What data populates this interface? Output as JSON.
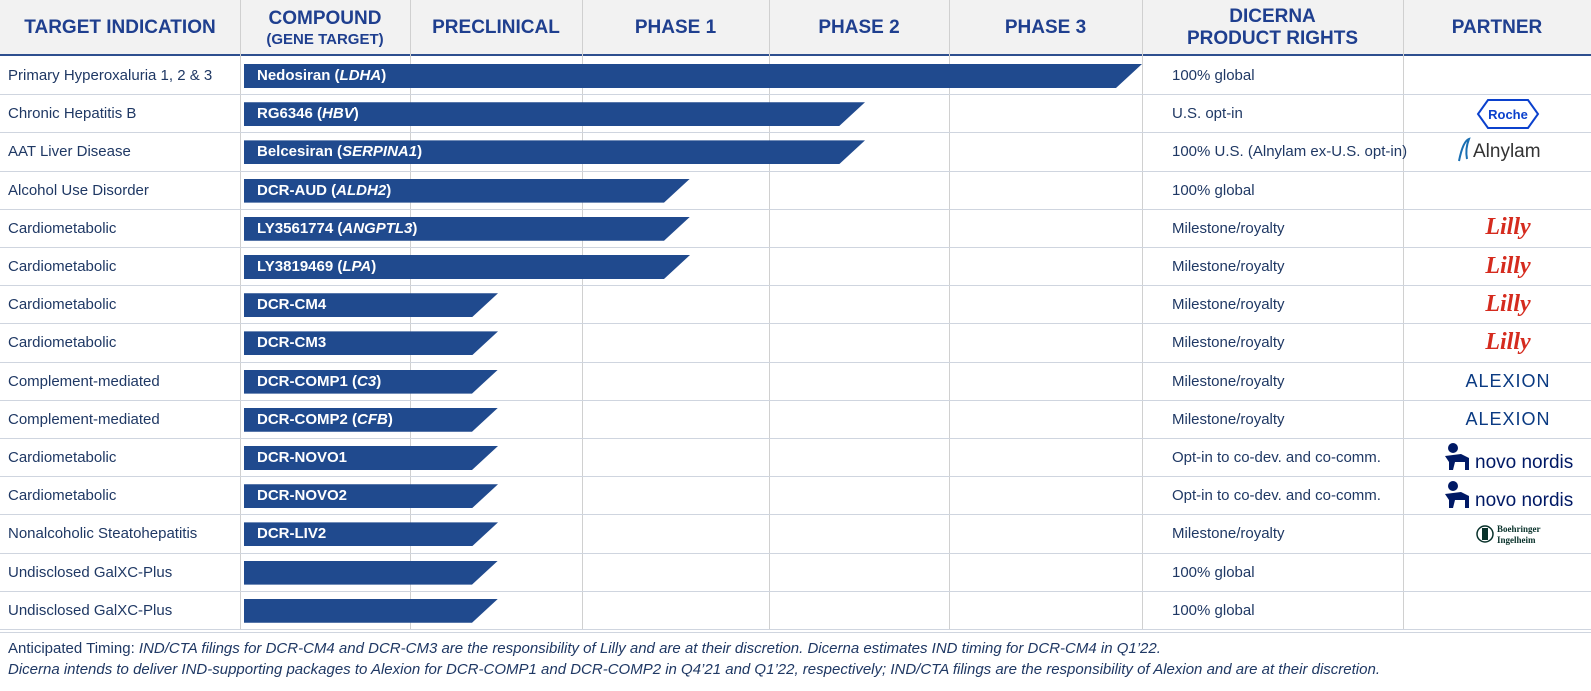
{
  "header": {
    "target_indication": "TARGET INDICATION",
    "compound": "COMPOUND",
    "compound_sub": "(GENE TARGET)",
    "preclinical": "PRECLINICAL",
    "phase1": "PHASE 1",
    "phase2": "PHASE 2",
    "phase3": "PHASE 3",
    "rights_line1": "DICERNA",
    "rights_line2": "PRODUCT RIGHTS",
    "partner": "PARTNER"
  },
  "rows": [
    {
      "indication": "Primary Hyperoxaluria 1, 2 & 3",
      "compound": "Nedosiran",
      "gene": "LDHA",
      "stage": "Phase 3",
      "rights": "100% global",
      "partner": ""
    },
    {
      "indication": "Chronic Hepatitis B",
      "compound": "RG6346",
      "gene": "HBV",
      "stage": "Phase 2",
      "rights": "U.S. opt-in",
      "partner": "Roche"
    },
    {
      "indication": "AAT Liver Disease",
      "compound": "Belcesiran",
      "gene": "SERPINA1",
      "stage": "Phase 2",
      "rights": "100% U.S. (Alnylam ex-U.S. opt-in)",
      "partner": "Alnylam"
    },
    {
      "indication": "Alcohol Use Disorder",
      "compound": "DCR-AUD",
      "gene": "ALDH2",
      "stage": "Phase 1",
      "rights": "100% global",
      "partner": ""
    },
    {
      "indication": "Cardiometabolic",
      "compound": "LY3561774",
      "gene": "ANGPTL3",
      "stage": "Phase 1",
      "rights": "Milestone/royalty",
      "partner": "Lilly"
    },
    {
      "indication": "Cardiometabolic",
      "compound": "LY3819469",
      "gene": "LPA",
      "stage": "Phase 1",
      "rights": "Milestone/royalty",
      "partner": "Lilly"
    },
    {
      "indication": "Cardiometabolic",
      "compound": "DCR-CM4",
      "gene": "",
      "stage": "Preclinical",
      "rights": "Milestone/royalty",
      "partner": "Lilly"
    },
    {
      "indication": "Cardiometabolic",
      "compound": "DCR-CM3",
      "gene": "",
      "stage": "Preclinical",
      "rights": "Milestone/royalty",
      "partner": "Lilly"
    },
    {
      "indication": "Complement-mediated",
      "compound": "DCR-COMP1",
      "gene": "C3",
      "stage": "Preclinical",
      "rights": "Milestone/royalty",
      "partner": "ALEXION"
    },
    {
      "indication": "Complement-mediated",
      "compound": "DCR-COMP2",
      "gene": "CFB",
      "stage": "Preclinical",
      "rights": "Milestone/royalty",
      "partner": "ALEXION"
    },
    {
      "indication": "Cardiometabolic",
      "compound": "DCR-NOVO1",
      "gene": "",
      "stage": "Preclinical",
      "rights": "Opt-in to co-dev. and co-comm.",
      "partner": "novo nordisk"
    },
    {
      "indication": "Cardiometabolic",
      "compound": "DCR-NOVO2",
      "gene": "",
      "stage": "Preclinical",
      "rights": "Opt-in to co-dev. and co-comm.",
      "partner": "novo nordisk"
    },
    {
      "indication": "Nonalcoholic Steatohepatitis",
      "compound": "DCR-LIV2",
      "gene": "",
      "stage": "Preclinical",
      "rights": "Milestone/royalty",
      "partner": "Boehringer Ingelheim"
    },
    {
      "indication": "Undisclosed GalXC-Plus",
      "compound": "",
      "gene": "",
      "stage": "Preclinical",
      "rights": "100% global",
      "partner": ""
    },
    {
      "indication": "Undisclosed GalXC-Plus",
      "compound": "",
      "gene": "",
      "stage": "Preclinical",
      "rights": "100% global",
      "partner": ""
    }
  ],
  "footnote": {
    "line1_lead": "Anticipated Timing: ",
    "line1_rest": "IND/CTA filings for DCR-CM4 and DCR-CM3 are the responsibility of Lilly and are at their discretion. Dicerna estimates IND timing for DCR-CM4 in Q1’22.",
    "line2": "Dicerna intends to deliver IND-supporting packages to Alexion for DCR-COMP1 and DCR-COMP2 in Q4’21 and Q1’22, respectively; IND/CTA filings are the responsibility of Alexion and are at their discretion."
  },
  "colors": {
    "bar": "#204a8e",
    "header_text": "#1f3f8f",
    "lilly_red": "#d52b1e",
    "roche_blue": "#0b41cd",
    "alexion_blue": "#0a3a82",
    "novo_blue": "#001965"
  }
}
